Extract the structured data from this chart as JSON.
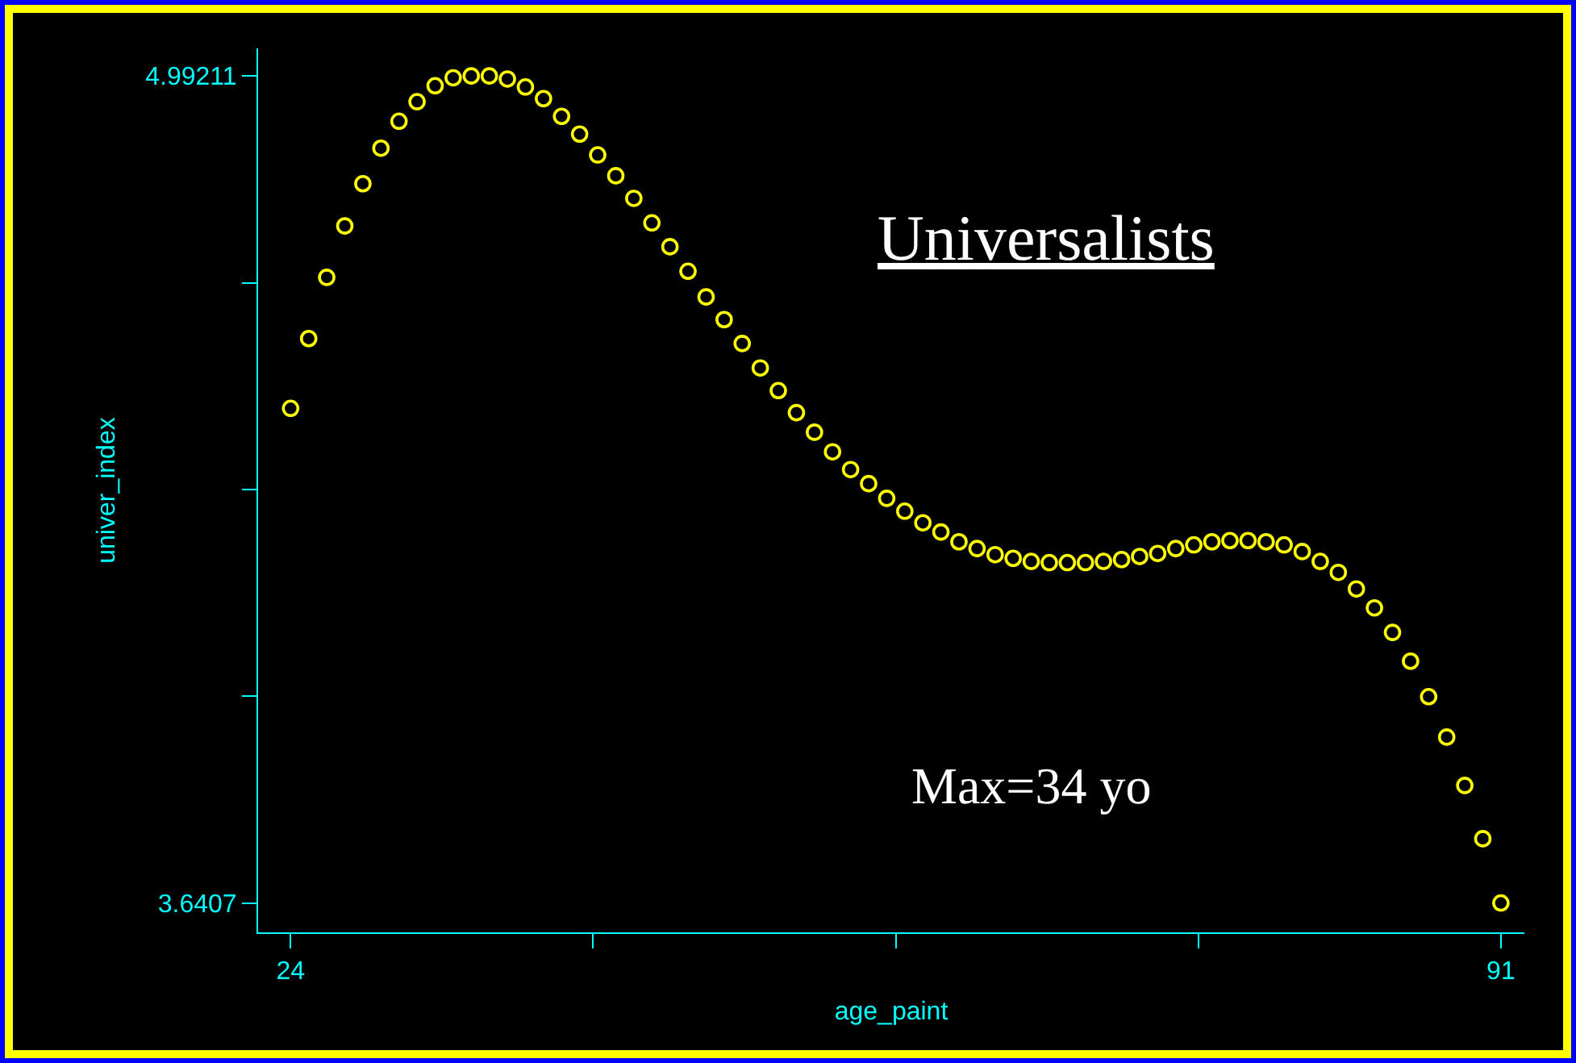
{
  "chart_data": {
    "type": "scatter",
    "xlabel": "age_paint",
    "ylabel": "univer_index",
    "marker": "circle",
    "grid": false,
    "annotations": [
      "Universalists",
      "Max=34 yo"
    ],
    "x": [
      24,
      25,
      26,
      27,
      28,
      29,
      30,
      31,
      32,
      33,
      34,
      35,
      36,
      37,
      38,
      39,
      40,
      41,
      42,
      43,
      44,
      45,
      46,
      47,
      48,
      49,
      50,
      51,
      52,
      53,
      54,
      55,
      56,
      57,
      58,
      59,
      60,
      61,
      62,
      63,
      64,
      65,
      66,
      67,
      68,
      69,
      70,
      71,
      72,
      73,
      74,
      75,
      76,
      77,
      78,
      79,
      80,
      81,
      82,
      83,
      84,
      85,
      86,
      87,
      88,
      89,
      90,
      91
    ],
    "series": [
      {
        "color": "#ffff00",
        "values": [
          4.449,
          4.563,
          4.663,
          4.747,
          4.816,
          4.874,
          4.918,
          4.95,
          4.976,
          4.989,
          4.992,
          4.992,
          4.987,
          4.974,
          4.955,
          4.926,
          4.897,
          4.863,
          4.829,
          4.792,
          4.752,
          4.713,
          4.673,
          4.631,
          4.594,
          4.555,
          4.515,
          4.478,
          4.442,
          4.41,
          4.378,
          4.349,
          4.326,
          4.302,
          4.281,
          4.262,
          4.247,
          4.231,
          4.22,
          4.21,
          4.204,
          4.199,
          4.197,
          4.197,
          4.197,
          4.199,
          4.202,
          4.207,
          4.212,
          4.22,
          4.226,
          4.231,
          4.233,
          4.233,
          4.231,
          4.226,
          4.215,
          4.199,
          4.181,
          4.154,
          4.123,
          4.083,
          4.036,
          3.978,
          3.912,
          3.833,
          3.746,
          3.641
        ]
      }
    ],
    "xlim": [
      22.2,
      92.3
    ],
    "xticks": [
      24,
      {
        "value": 40.75,
        "label": null
      },
      {
        "value": 57.5,
        "label": null
      },
      {
        "value": 74.25,
        "label": null
      },
      91
    ],
    "ylim": [
      3.593,
      5.037
    ],
    "yticks": [
      3.6407,
      {
        "value": 3.97855,
        "label": null
      },
      {
        "value": 4.31641,
        "label": null
      },
      {
        "value": 4.65426,
        "label": null
      },
      4.99211
    ]
  }
}
